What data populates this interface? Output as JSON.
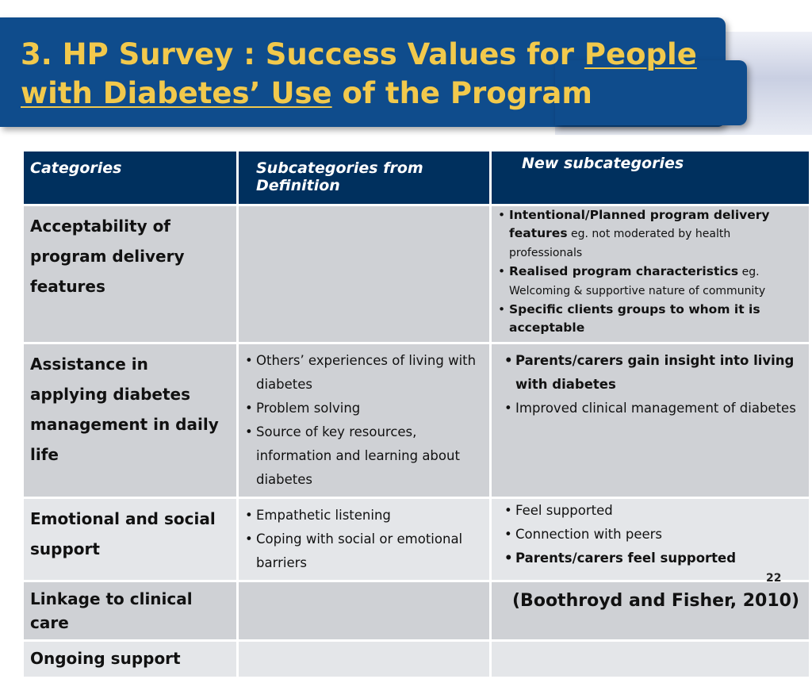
{
  "slide": {
    "title_parts": [
      "3.   HP Survey :  Success Values for ",
      "People with Diabetes’ Use",
      " of the Program"
    ],
    "page_number": "22",
    "citation": "(Boothroyd and Fisher, 2010)"
  },
  "table": {
    "headers": [
      "Categories",
      "Subcategories from Definition",
      "New subcategories"
    ],
    "rows": [
      {
        "category": "Acceptability of program delivery features",
        "subcategories": [],
        "new": [
          {
            "bold": "Intentional/Planned program delivery features",
            "normal": " eg. not moderated by health professionals"
          },
          {
            "bold": "Realised program characteristics",
            "normal": " eg. Welcoming & supportive nature of community"
          },
          {
            "bold": "Specific clients groups to whom it is acceptable",
            "normal": ""
          }
        ]
      },
      {
        "category": "Assistance in applying diabetes management in daily life",
        "subcategories": [
          "Others’ experiences of living with diabetes",
          "Problem solving",
          "Source of key resources, information and learning about diabetes"
        ],
        "new": [
          {
            "bold": "Parents/carers gain insight into living with diabetes",
            "normal": ""
          },
          {
            "bold": "",
            "normal": "Improved clinical management of diabetes"
          }
        ]
      },
      {
        "category": "Emotional and social support",
        "subcategories": [
          "Empathetic listening",
          "Coping with social or emotional barriers"
        ],
        "new": [
          {
            "bold": "",
            "normal": "Feel supported"
          },
          {
            "bold": "",
            "normal": "Connection with peers"
          },
          {
            "bold": "Parents/carers feel supported",
            "normal": ""
          }
        ]
      },
      {
        "category": "Linkage to clinical care",
        "subcategories": [],
        "new": []
      },
      {
        "category": "Ongoing support",
        "subcategories": [],
        "new": []
      }
    ]
  }
}
